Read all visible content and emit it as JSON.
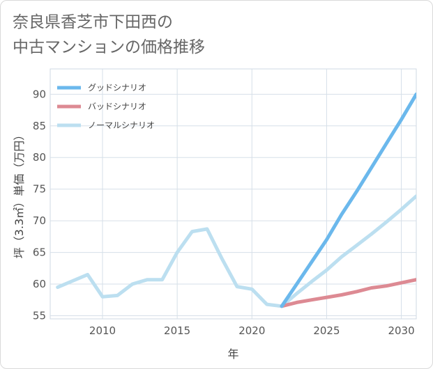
{
  "title_line1": "奈良県香芝市下田西の",
  "title_line2": "中古マンションの価格推移",
  "chart_data": {
    "type": "line",
    "title": "奈良県香芝市下田西の中古マンションの価格推移",
    "xlabel": "年",
    "ylabel": "坪（3.3㎡）単価（万円）",
    "xlim": [
      2006.5,
      2031
    ],
    "ylim": [
      54.5,
      94
    ],
    "xticks": [
      2010,
      2015,
      2020,
      2025,
      2030
    ],
    "yticks": [
      55,
      60,
      65,
      70,
      75,
      80,
      85,
      90
    ],
    "grid": true,
    "legend_position": "top-left",
    "series": [
      {
        "name": "グッドシナリオ",
        "color": "#6bb8ec",
        "x": [
          2022,
          2023,
          2024,
          2025,
          2026,
          2027,
          2028,
          2029,
          2030,
          2031
        ],
        "y": [
          56.5,
          60.0,
          63.5,
          67.0,
          71.0,
          74.6,
          78.4,
          82.2,
          86.0,
          90.0
        ]
      },
      {
        "name": "バッドシナリオ",
        "color": "#dd8a93",
        "x": [
          2022,
          2023,
          2024,
          2025,
          2026,
          2027,
          2028,
          2029,
          2030,
          2031
        ],
        "y": [
          56.5,
          57.1,
          57.5,
          57.9,
          58.3,
          58.8,
          59.4,
          59.7,
          60.2,
          60.7
        ]
      },
      {
        "name": "ノーマルシナリオ",
        "color": "#bcdff0",
        "x": [
          2007,
          2008,
          2009,
          2010,
          2011,
          2012,
          2013,
          2014,
          2015,
          2016,
          2017,
          2018,
          2019,
          2020,
          2021,
          2022,
          2023,
          2024,
          2025,
          2026,
          2027,
          2028,
          2029,
          2030,
          2031
        ],
        "y": [
          59.5,
          60.5,
          61.5,
          58.0,
          58.2,
          60.0,
          60.7,
          60.7,
          65.0,
          68.3,
          68.7,
          64.0,
          59.6,
          59.2,
          56.8,
          56.5,
          58.5,
          60.4,
          62.2,
          64.3,
          66.1,
          67.9,
          69.8,
          71.8,
          73.9
        ]
      }
    ]
  }
}
